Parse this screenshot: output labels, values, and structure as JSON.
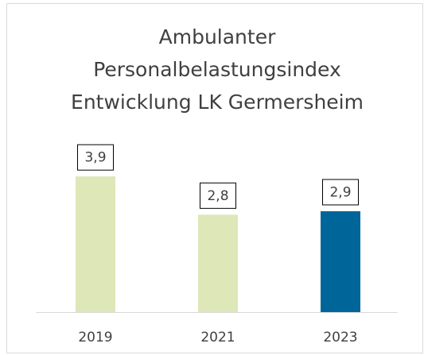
{
  "chart_data": {
    "type": "bar",
    "title": [
      "Ambulanter",
      "Personalbelastungsindex",
      "Entwicklung LK Germersheim"
    ],
    "categories": [
      "2019",
      "2021",
      "2023"
    ],
    "values": [
      3.9,
      2.8,
      2.9
    ],
    "value_labels": [
      "3,9",
      "2,8",
      "2,9"
    ],
    "colors": [
      "#dde7b7",
      "#dde7b7",
      "#006699"
    ]
  }
}
